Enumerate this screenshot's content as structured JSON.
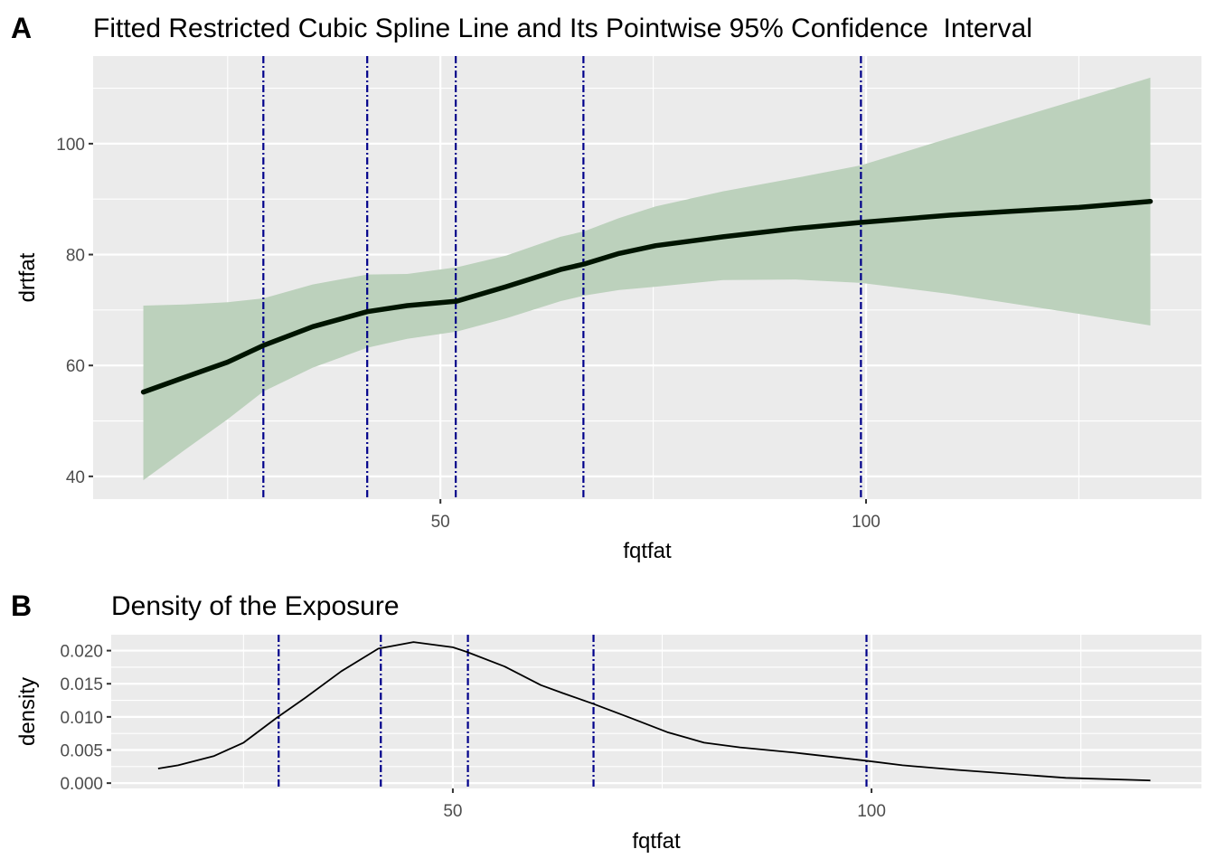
{
  "chart_data": [
    {
      "panel": "A",
      "type": "line",
      "title": "Fitted Restricted Cubic Spline Line and Its Pointwise 95% Confidence  Interval",
      "xlabel": "fqtfat",
      "ylabel": "drtfat",
      "xlim": [
        9.2,
        139.4
      ],
      "ylim": [
        35.9,
        115.8
      ],
      "x_ticks": [
        50,
        100
      ],
      "x_tick_labels": [
        "50",
        "100"
      ],
      "x_minor": [
        25,
        75,
        125
      ],
      "y_ticks": [
        40,
        60,
        80,
        100
      ],
      "y_tick_labels": [
        "40",
        "60",
        "80",
        "100"
      ],
      "y_minor": [
        50,
        70,
        90,
        110
      ],
      "grid": true,
      "knots": [
        29.2,
        41.4,
        51.8,
        66.8,
        99.4
      ],
      "series": [
        {
          "name": "fit",
          "x": [
            15.1,
            20.0,
            25.0,
            29.2,
            35.0,
            41.4,
            46.1,
            51.9,
            57.7,
            64.1,
            66.9,
            71.0,
            75.3,
            83.2,
            91.7,
            99.4,
            109.8,
            117.0,
            125.0,
            133.4
          ],
          "y": [
            55.2,
            57.9,
            60.6,
            63.6,
            67.0,
            69.7,
            70.8,
            71.6,
            74.2,
            77.3,
            78.3,
            80.2,
            81.6,
            83.2,
            84.7,
            85.8,
            87.1,
            87.8,
            88.5,
            89.6
          ]
        },
        {
          "name": "upper_95",
          "x": [
            15.1,
            20.0,
            25.0,
            29.2,
            35.0,
            41.4,
            46.1,
            51.9,
            57.7,
            64.1,
            66.9,
            71.0,
            75.3,
            83.2,
            91.7,
            99.4,
            109.8,
            117.0,
            125.0,
            133.4
          ],
          "y": [
            70.8,
            71.0,
            71.4,
            72.1,
            74.6,
            76.4,
            76.5,
            77.7,
            79.8,
            83.2,
            84.2,
            86.6,
            88.7,
            91.4,
            93.8,
            96.1,
            101.0,
            104.3,
            108.0,
            111.9
          ]
        },
        {
          "name": "lower_95",
          "x": [
            15.1,
            20.0,
            25.0,
            29.2,
            35.0,
            41.4,
            46.1,
            51.9,
            57.7,
            64.1,
            66.9,
            71.0,
            75.3,
            83.2,
            91.7,
            99.4,
            109.8,
            117.0,
            125.0,
            133.4
          ],
          "y": [
            39.3,
            44.8,
            50.3,
            55.3,
            59.6,
            63.2,
            64.8,
            66.1,
            68.5,
            71.6,
            72.6,
            73.6,
            74.2,
            75.4,
            75.5,
            74.9,
            72.9,
            71.2,
            69.3,
            67.2
          ]
        }
      ]
    },
    {
      "panel": "B",
      "type": "line",
      "title": "Density of the Exposure",
      "xlabel": "fqtfat",
      "ylabel": "density",
      "xlim": [
        9.2,
        139.4
      ],
      "ylim": [
        -0.0008,
        0.0224
      ],
      "x_ticks": [
        50,
        100
      ],
      "x_tick_labels": [
        "50",
        "100"
      ],
      "x_minor": [
        25,
        75,
        125
      ],
      "y_ticks": [
        0.0,
        0.005,
        0.01,
        0.015,
        0.02
      ],
      "y_tick_labels": [
        "0.000",
        "0.005",
        "0.010",
        "0.015",
        "0.020"
      ],
      "y_minor": [
        0.0025,
        0.0075,
        0.0125,
        0.0175
      ],
      "grid": true,
      "knots": [
        29.2,
        41.4,
        51.8,
        66.8,
        99.4
      ],
      "series": [
        {
          "name": "density",
          "x": [
            14.8,
            17.2,
            21.5,
            25.0,
            29.0,
            32.4,
            36.7,
            41.1,
            45.3,
            50.0,
            51.7,
            56.2,
            60.5,
            63.1,
            66.7,
            71.3,
            75.6,
            80.0,
            84.3,
            90.8,
            99.2,
            103.7,
            110.2,
            116.7,
            123.2,
            133.3
          ],
          "y": [
            0.0022,
            0.0027,
            0.0041,
            0.0061,
            0.0099,
            0.0129,
            0.0169,
            0.0203,
            0.0213,
            0.0205,
            0.0198,
            0.0176,
            0.0148,
            0.0136,
            0.012,
            0.0098,
            0.0077,
            0.0061,
            0.0054,
            0.0046,
            0.0034,
            0.0027,
            0.002,
            0.0014,
            0.0008,
            0.0004
          ]
        }
      ]
    }
  ],
  "labels": {
    "panel_a_tag": "A",
    "panel_b_tag": "B"
  },
  "colors": {
    "knot_line": "#00008B",
    "band_fill": "#BCD1BC",
    "fit_line": "#001400",
    "density_line": "#000000",
    "panel_bg": "#EBEBEB"
  }
}
